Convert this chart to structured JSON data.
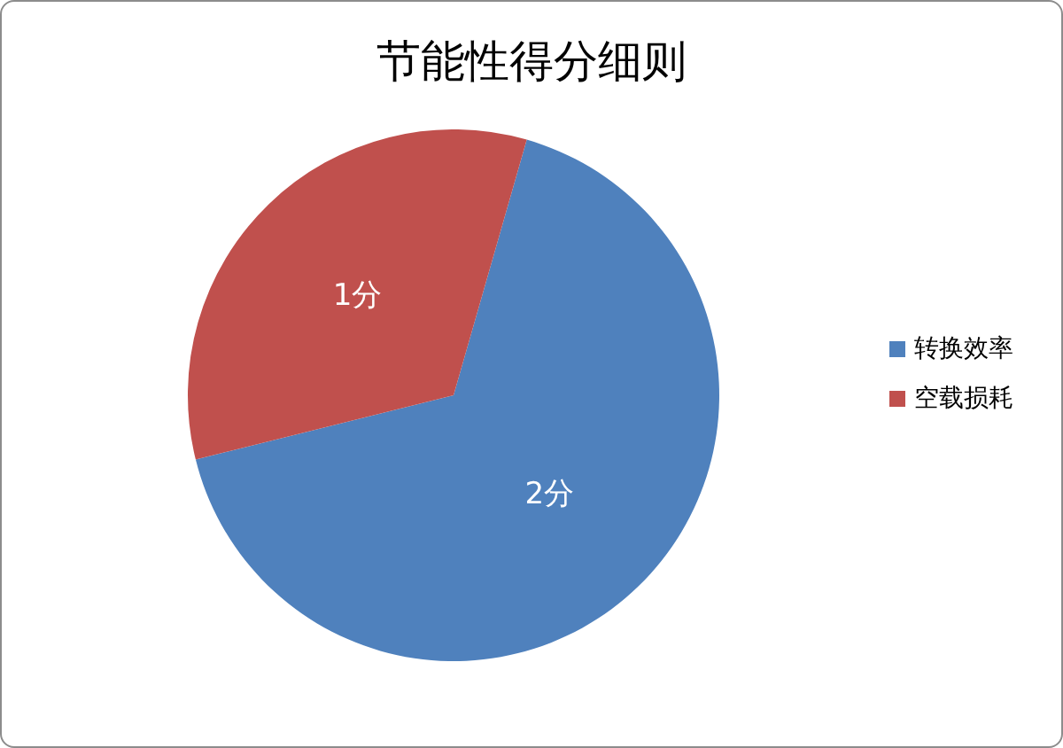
{
  "chart_data": {
    "type": "pie",
    "title": "节能性得分细则",
    "categories": [
      "转换效率",
      "空载损耗"
    ],
    "values": [
      2,
      1
    ],
    "colors": [
      "#4f81bd",
      "#c0504d"
    ],
    "value_labels": [
      "2分",
      "1分"
    ],
    "legend": "right"
  }
}
